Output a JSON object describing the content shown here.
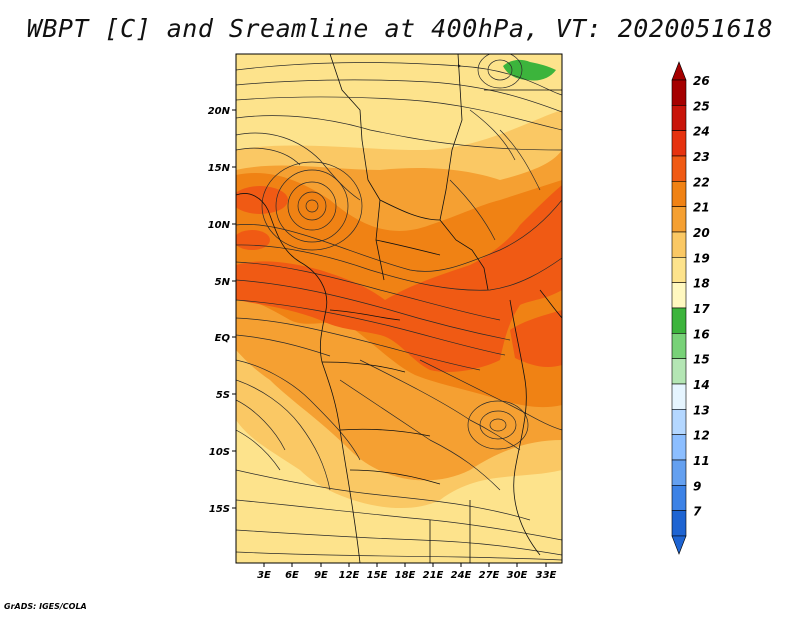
{
  "title": "WBPT [C] and Sreamline at 400hPa, VT: 2020051618",
  "credit": "GrADS: IGES/COLA",
  "map": {
    "lat_labels": [
      "20N",
      "15N",
      "10N",
      "5N",
      "EQ",
      "5S",
      "10S",
      "15S"
    ],
    "lon_labels": [
      "3E",
      "6E",
      "9E",
      "12E",
      "15E",
      "18E",
      "21E",
      "24E",
      "27E",
      "30E",
      "33E"
    ]
  },
  "colorbar": {
    "labels": [
      "26",
      "25",
      "24",
      "23",
      "22",
      "21",
      "20",
      "19",
      "18",
      "17",
      "16",
      "15",
      "14",
      "13",
      "12",
      "11",
      "9",
      "7"
    ],
    "colors": [
      "#a50000",
      "#c8140a",
      "#e6320f",
      "#f05a14",
      "#f08214",
      "#f5a032",
      "#fac864",
      "#fde38c",
      "#fff8c0",
      "#3cb43c",
      "#78d278",
      "#b4e6b4",
      "#e6f5ff",
      "#b4d7ff",
      "#8cbeff",
      "#64a0f0",
      "#3c82e6",
      "#1e64d2"
    ]
  }
}
